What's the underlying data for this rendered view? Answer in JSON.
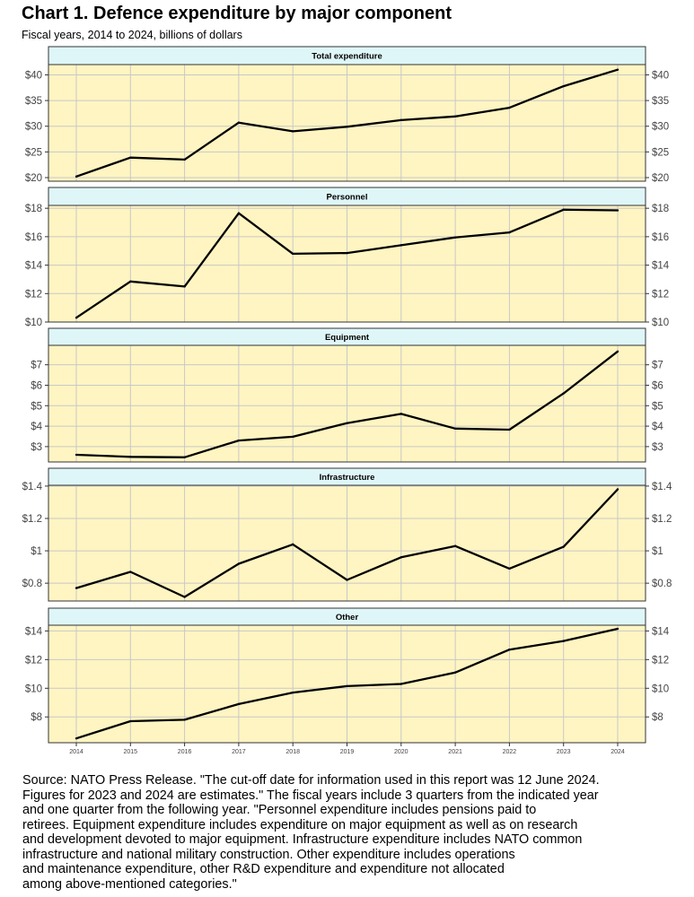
{
  "title": "Chart 1. Defence expenditure by major component",
  "subtitle": "Fiscal years, 2014 to 2024, billions of dollars",
  "source_lines": [
    "Source: NATO Press Release. \"The cut-off date for information used in this report was 12 June 2024.",
    "Figures for 2023 and 2024 are estimates.\" The fiscal years include 3 quarters from the indicated year",
    "and one quarter from the following year. \"Personnel expenditure includes pensions paid to",
    "retirees. Equipment expenditure includes expenditure on major equipment as well as on research",
    "and development devoted to major equipment. Infrastructure expenditure includes NATO common",
    "infrastructure and national military construction. Other expenditure includes operations",
    "and maintenance expenditure, other R&D expenditure and expenditure not allocated",
    "among above-mentioned categories.\""
  ],
  "colors": {
    "panel_bg": "#fff5c2",
    "strip_bg": "#dff6f8",
    "line": "#000000",
    "grid": "#c8c8c8"
  },
  "chart_data": {
    "type": "line",
    "x": [
      "2014",
      "2015",
      "2016",
      "2017",
      "2018",
      "2019",
      "2020",
      "2021",
      "2022",
      "2023",
      "2024"
    ],
    "panels": [
      {
        "name": "Total expenditure",
        "values": [
          20.2,
          23.9,
          23.5,
          30.7,
          29.0,
          29.9,
          31.2,
          31.9,
          33.6,
          37.8,
          41.0
        ],
        "ylim": [
          19.3,
          42.0
        ],
        "yticks": [
          20,
          25,
          30,
          35,
          40
        ],
        "ytick_labels": [
          "$20",
          "$25",
          "$30",
          "$35",
          "$40"
        ]
      },
      {
        "name": "Personnel",
        "values": [
          10.3,
          12.85,
          12.5,
          17.65,
          14.8,
          14.85,
          15.4,
          15.95,
          16.3,
          17.9,
          17.85
        ],
        "ylim": [
          10.0,
          18.2
        ],
        "yticks": [
          10,
          12,
          14,
          16,
          18
        ],
        "ytick_labels": [
          "$10",
          "$12",
          "$14",
          "$16",
          "$18"
        ]
      },
      {
        "name": "Equipment",
        "values": [
          2.6,
          2.5,
          2.48,
          3.3,
          3.48,
          4.15,
          4.6,
          3.88,
          3.83,
          5.6,
          7.65
        ],
        "ylim": [
          2.25,
          7.95
        ],
        "yticks": [
          3,
          4,
          5,
          6,
          7
        ],
        "ytick_labels": [
          "$3",
          "$4",
          "$5",
          "$6",
          "$7"
        ]
      },
      {
        "name": "Infrastructure",
        "values": [
          0.77,
          0.87,
          0.715,
          0.92,
          1.04,
          0.82,
          0.96,
          1.03,
          0.89,
          1.025,
          1.38
        ],
        "ylim": [
          0.69,
          1.405
        ],
        "yticks": [
          0.8,
          1.0,
          1.2,
          1.4
        ],
        "ytick_labels": [
          "$0.8",
          "$1",
          "$1.2",
          "$1.4"
        ]
      },
      {
        "name": "Other",
        "values": [
          6.5,
          7.7,
          7.8,
          8.9,
          9.7,
          10.15,
          10.3,
          11.1,
          12.7,
          13.3,
          14.15
        ],
        "ylim": [
          6.2,
          14.4
        ],
        "yticks": [
          8,
          10,
          12,
          14
        ],
        "ytick_labels": [
          "$8",
          "$10",
          "$12",
          "$14"
        ]
      }
    ],
    "grid": true,
    "secondary_y_axis": "right"
  }
}
